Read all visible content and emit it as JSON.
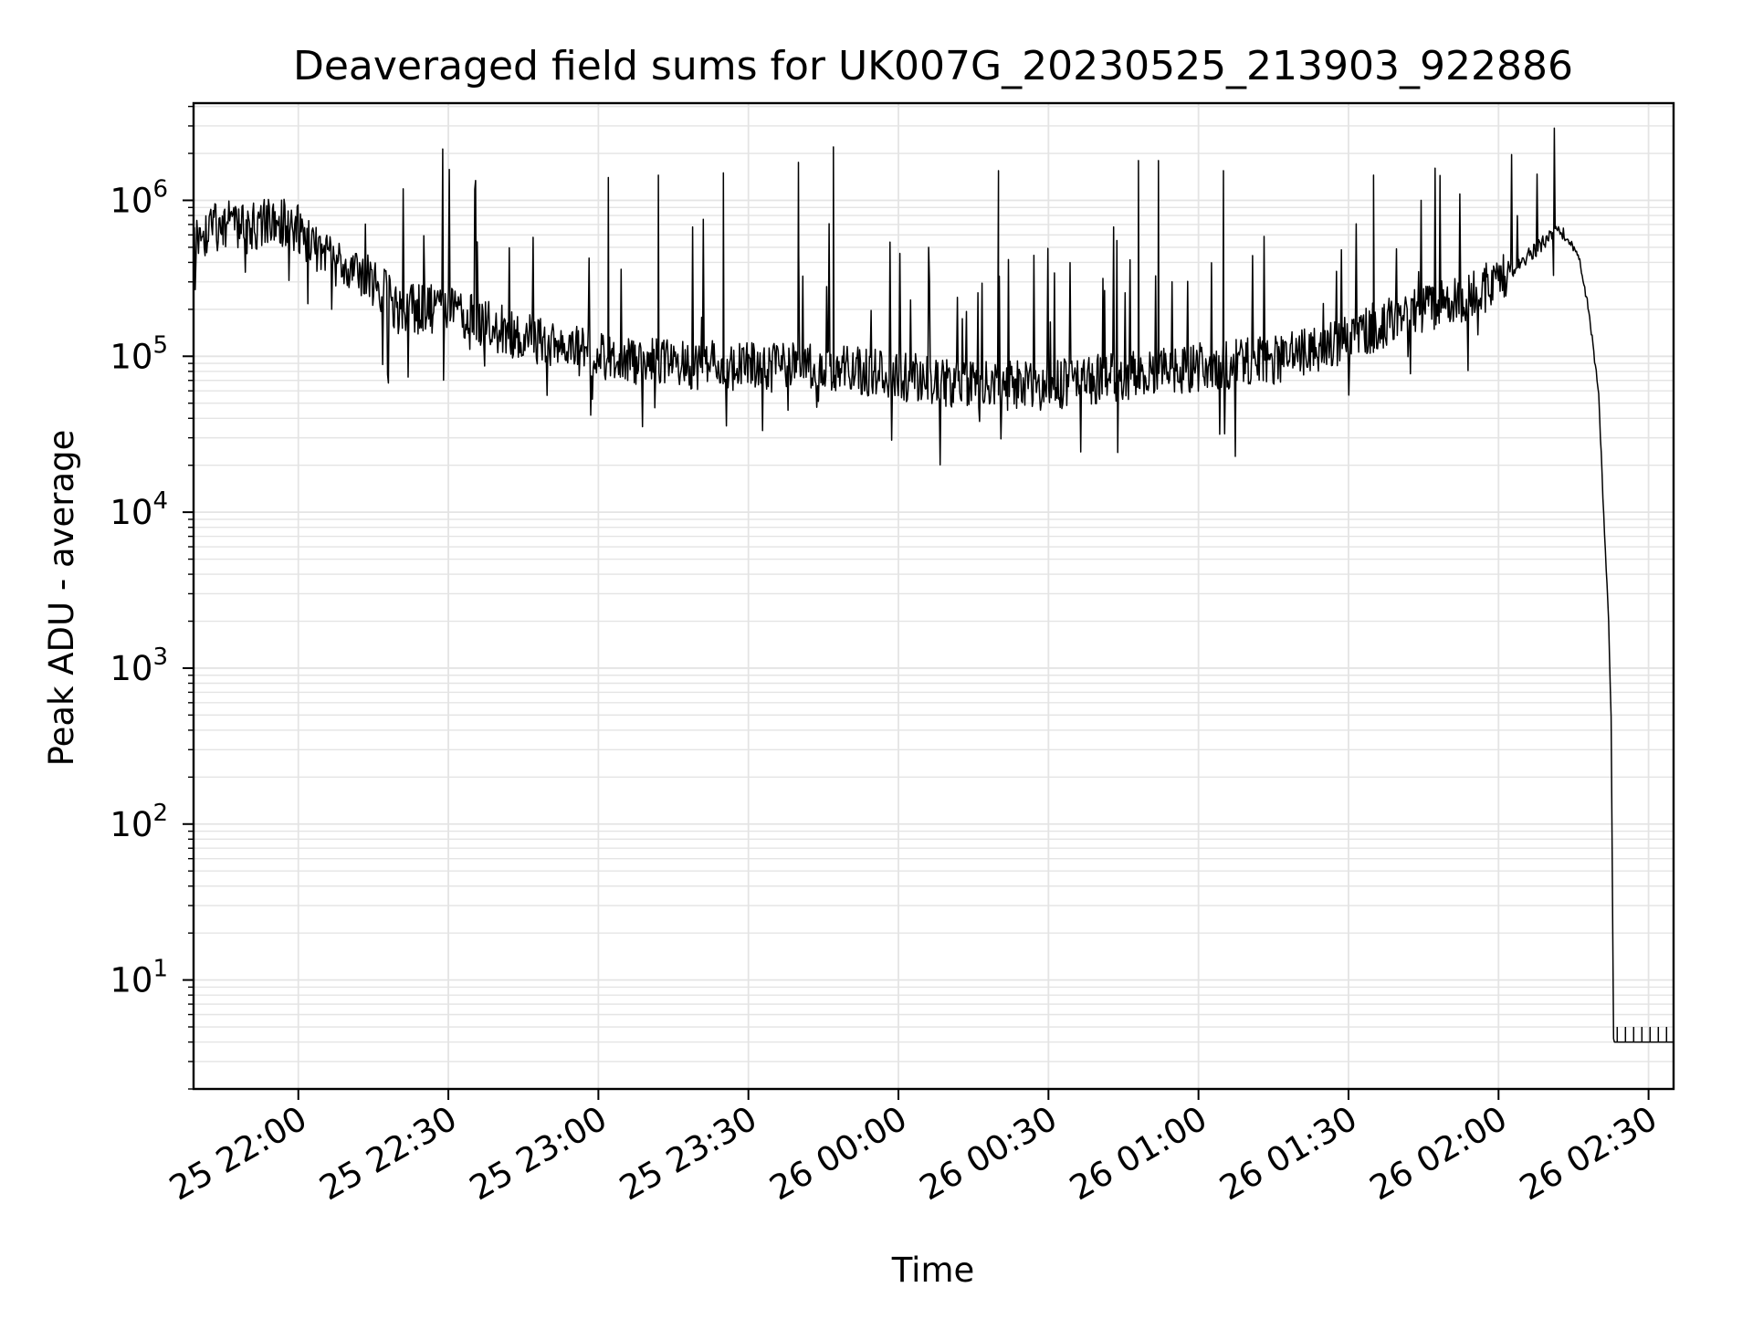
{
  "chart_data": {
    "type": "line",
    "title": "Deaveraged field sums for UK007G_20230525_213903_922886",
    "xlabel": "Time",
    "ylabel": "Peak ADU - average",
    "yscale": "log",
    "ylim": [
      2,
      4200000
    ],
    "xlim": [
      "2023-05-25 21:39:03",
      "2023-05-26 02:35:00"
    ],
    "grid": true,
    "line_color": "#000000",
    "grid_color": "#e4e4e4",
    "x_ticks": [
      {
        "t": "2023-05-25 22:00:00",
        "label": "25 22:00"
      },
      {
        "t": "2023-05-25 22:30:00",
        "label": "25 22:30"
      },
      {
        "t": "2023-05-25 23:00:00",
        "label": "25 23:00"
      },
      {
        "t": "2023-05-25 23:30:00",
        "label": "25 23:30"
      },
      {
        "t": "2023-05-26 00:00:00",
        "label": "26 00:00"
      },
      {
        "t": "2023-05-26 00:30:00",
        "label": "26 00:30"
      },
      {
        "t": "2023-05-26 01:00:00",
        "label": "26 01:00"
      },
      {
        "t": "2023-05-26 01:30:00",
        "label": "26 01:30"
      },
      {
        "t": "2023-05-26 02:00:00",
        "label": "26 02:00"
      },
      {
        "t": "2023-05-26 02:30:00",
        "label": "26 02:30"
      }
    ],
    "y_ticks": [
      {
        "value": 10,
        "base": "10",
        "exp": "1"
      },
      {
        "value": 100,
        "base": "10",
        "exp": "2"
      },
      {
        "value": 1000,
        "base": "10",
        "exp": "3"
      },
      {
        "value": 10000,
        "base": "10",
        "exp": "4"
      },
      {
        "value": 100000,
        "base": "10",
        "exp": "5"
      },
      {
        "value": 1000000,
        "base": "10",
        "exp": "6"
      }
    ],
    "series": [
      {
        "x": [
          "2023-05-25 21:39:03",
          "2023-05-25 21:45:00",
          "2023-05-25 21:50:00",
          "2023-05-25 21:55:00",
          "2023-05-25 22:00:00",
          "2023-05-25 22:05:00",
          "2023-05-25 22:10:00",
          "2023-05-25 22:15:00",
          "2023-05-25 22:20:00",
          "2023-05-25 22:30:00",
          "2023-05-25 22:40:00",
          "2023-05-25 22:50:00",
          "2023-05-25 23:00:00",
          "2023-05-25 23:15:00",
          "2023-05-25 23:30:00",
          "2023-05-25 23:45:00",
          "2023-05-26 00:00:00",
          "2023-05-26 00:15:00",
          "2023-05-26 00:30:00",
          "2023-05-26 00:45:00",
          "2023-05-26 01:00:00",
          "2023-05-26 01:15:00",
          "2023-05-26 01:30:00",
          "2023-05-26 01:40:00",
          "2023-05-26 01:50:00",
          "2023-05-26 02:00:00",
          "2023-05-26 02:08:00",
          "2023-05-26 02:12:00",
          "2023-05-26 02:14:00",
          "2023-05-26 02:16:00",
          "2023-05-26 02:18:00",
          "2023-05-26 02:20:00",
          "2023-05-26 02:21:00",
          "2023-05-26 02:22:00",
          "2023-05-26 02:22:30",
          "2023-05-26 02:23:00",
          "2023-05-26 02:35:00"
        ],
        "y": [
          600000,
          700000,
          650000,
          750000,
          650000,
          450000,
          350000,
          300000,
          200000,
          200000,
          150000,
          120000,
          100000,
          90000,
          85000,
          85000,
          75000,
          65000,
          65000,
          75000,
          85000,
          95000,
          130000,
          180000,
          220000,
          300000,
          500000,
          650000,
          550000,
          450000,
          200000,
          60000,
          10000,
          2000,
          500,
          4,
          4
        ]
      }
    ],
    "spikes": [
      {
        "t": "2023-05-25 23:02:00",
        "y": 1400000
      },
      {
        "t": "2023-05-25 23:12:00",
        "y": 1450000
      },
      {
        "t": "2023-05-25 23:25:00",
        "y": 1500000
      },
      {
        "t": "2023-05-25 23:40:00",
        "y": 1750000
      },
      {
        "t": "2023-05-25 23:47:00",
        "y": 2200000
      },
      {
        "t": "2023-05-26 00:20:00",
        "y": 1550000
      },
      {
        "t": "2023-05-26 00:48:00",
        "y": 1800000
      },
      {
        "t": "2023-05-26 00:52:00",
        "y": 1800000
      },
      {
        "t": "2023-05-26 01:05:00",
        "y": 1550000
      },
      {
        "t": "2023-05-26 01:35:00",
        "y": 1450000
      }
    ],
    "tail_ticks_value": 5
  }
}
